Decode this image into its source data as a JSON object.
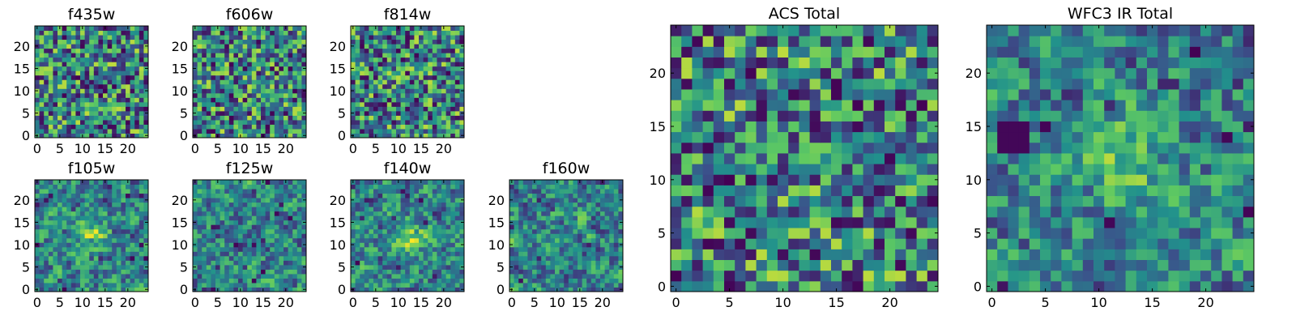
{
  "figure": {
    "colormap": "viridis",
    "colormap_stops": [
      "#440154",
      "#3b528b",
      "#21918c",
      "#5ec962",
      "#fde725"
    ]
  },
  "chart_data": [
    {
      "type": "heatmap",
      "title": "f435w",
      "size": [
        25,
        25
      ],
      "xlim": [
        0,
        24
      ],
      "ylim": [
        0,
        24
      ],
      "xticks": [
        "0",
        "5",
        "10",
        "15",
        "20"
      ],
      "yticks": [
        "0",
        "5",
        "10",
        "15",
        "20"
      ],
      "values": "random noise image, mostly green-yellow with scattered dark pixels"
    },
    {
      "type": "heatmap",
      "title": "f606w",
      "size": [
        25,
        25
      ],
      "xlim": [
        0,
        24
      ],
      "ylim": [
        0,
        24
      ],
      "xticks": [
        "0",
        "5",
        "10",
        "15",
        "20"
      ],
      "yticks": [
        "0",
        "5",
        "10",
        "15",
        "20"
      ],
      "values": "random noise image"
    },
    {
      "type": "heatmap",
      "title": "f814w",
      "size": [
        25,
        25
      ],
      "xlim": [
        0,
        24
      ],
      "ylim": [
        0,
        24
      ],
      "xticks": [
        "0",
        "5",
        "10",
        "15",
        "20"
      ],
      "yticks": [
        "0",
        "5",
        "10",
        "15",
        "20"
      ],
      "values": "random noise image"
    },
    {
      "type": "heatmap",
      "title": "f105w",
      "size": [
        25,
        25
      ],
      "xlim": [
        0,
        24
      ],
      "ylim": [
        0,
        24
      ],
      "xticks": [
        "0",
        "5",
        "10",
        "15",
        "20"
      ],
      "yticks": [
        "0",
        "5",
        "10",
        "15",
        "20"
      ],
      "values": "smooth noise with bright yellow center near (12,13)"
    },
    {
      "type": "heatmap",
      "title": "f125w",
      "size": [
        25,
        25
      ],
      "xlim": [
        0,
        24
      ],
      "ylim": [
        0,
        24
      ],
      "xticks": [
        "0",
        "5",
        "10",
        "15",
        "20"
      ],
      "yticks": [
        "0",
        "5",
        "10",
        "15",
        "20"
      ],
      "values": "smooth noise"
    },
    {
      "type": "heatmap",
      "title": "f140w",
      "size": [
        25,
        25
      ],
      "xlim": [
        0,
        24
      ],
      "ylim": [
        0,
        24
      ],
      "xticks": [
        "0",
        "5",
        "10",
        "15",
        "20"
      ],
      "yticks": [
        "0",
        "5",
        "10",
        "15",
        "20"
      ],
      "values": "smooth noise with bright center"
    },
    {
      "type": "heatmap",
      "title": "f160w",
      "size": [
        25,
        25
      ],
      "xlim": [
        0,
        24
      ],
      "ylim": [
        0,
        24
      ],
      "xticks": [
        "0",
        "5",
        "10",
        "15",
        "20"
      ],
      "yticks": [
        "0",
        "5",
        "10",
        "15",
        "20"
      ],
      "values": "smooth noise with dark patches"
    },
    {
      "type": "heatmap",
      "title": "ACS Total",
      "size": [
        25,
        25
      ],
      "xlim": [
        0,
        24
      ],
      "ylim": [
        0,
        24
      ],
      "xticks": [
        "0",
        "5",
        "10",
        "15",
        "20"
      ],
      "yticks": [
        "0",
        "5",
        "10",
        "15",
        "20"
      ],
      "values": "random noise image"
    },
    {
      "type": "heatmap",
      "title": "WFC3 IR Total",
      "size": [
        25,
        25
      ],
      "xlim": [
        0,
        24
      ],
      "ylim": [
        0,
        24
      ],
      "xticks": [
        "0",
        "5",
        "10",
        "15",
        "20"
      ],
      "yticks": [
        "0",
        "5",
        "10",
        "15",
        "20"
      ],
      "values": "smooth noise with bright center near (12,12) and dark patch near (2,15)"
    }
  ]
}
